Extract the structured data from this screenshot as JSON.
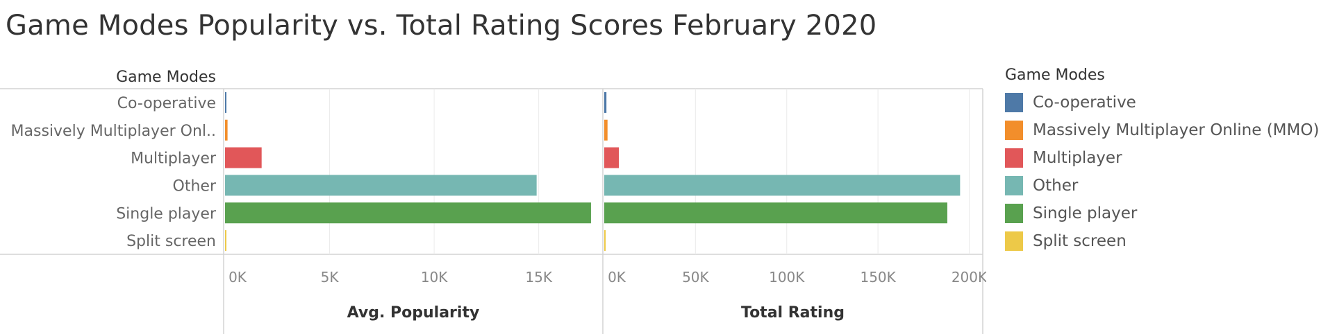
{
  "title": "Game Modes Popularity vs. Total Rating Scores February 2020",
  "chart_data": {
    "type": "bar",
    "orientation": "horizontal",
    "row_header": "Game Modes",
    "categories": [
      "Co-operative",
      "Massively Multiplayer Onl..",
      "Multiplayer",
      "Other",
      "Single player",
      "Split screen"
    ],
    "panels": [
      {
        "name": "Avg. Popularity",
        "xlabel": "Avg. Popularity",
        "xlim": [
          0,
          18000
        ],
        "ticks": [
          0,
          5000,
          10000,
          15000
        ],
        "tick_labels": [
          "0K",
          "5K",
          "10K",
          "15K"
        ],
        "values": [
          40,
          120,
          1750,
          14900,
          17500,
          30
        ]
      },
      {
        "name": "Total Rating",
        "xlabel": "Total Rating",
        "xlim": [
          0,
          204000
        ],
        "ticks": [
          0,
          50000,
          100000,
          150000,
          200000
        ],
        "tick_labels": [
          "0K",
          "50K",
          "100K",
          "150K",
          "200K"
        ],
        "values": [
          1200,
          1800,
          8000,
          195000,
          188000,
          600
        ]
      }
    ],
    "colors": [
      "#4e79a7",
      "#f28e2b",
      "#e15759",
      "#76b7b2",
      "#59a14f",
      "#edc948"
    ],
    "grid": true,
    "legend_position": "right"
  },
  "legend": {
    "title": "Game Modes",
    "items": [
      {
        "label": "Co-operative",
        "color": "#4e79a7"
      },
      {
        "label": "Massively Multiplayer Online (MMO)",
        "color": "#f28e2b"
      },
      {
        "label": "Multiplayer",
        "color": "#e15759"
      },
      {
        "label": "Other",
        "color": "#76b7b2"
      },
      {
        "label": "Single player",
        "color": "#59a14f"
      },
      {
        "label": "Split screen",
        "color": "#edc948"
      }
    ]
  }
}
